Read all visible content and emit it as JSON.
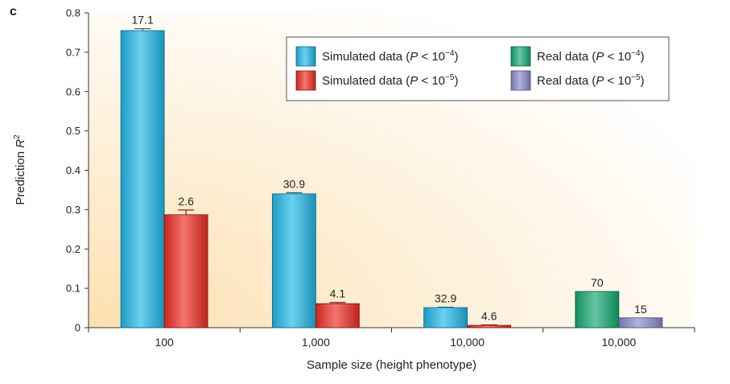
{
  "panel_label": "c",
  "chart_data": {
    "type": "bar",
    "xlabel": "Sample size (height phenotype)",
    "ylabel_main": "Prediction ",
    "ylabel_italic": "R",
    "ylabel_sup": "2",
    "ylim": [
      0,
      0.8
    ],
    "yticks": [
      "0",
      "0.1",
      "0.2",
      "0.3",
      "0.4",
      "0.5",
      "0.6",
      "0.7",
      "0.8"
    ],
    "grid": false,
    "legend_position": "top-right",
    "categories": [
      "100",
      "1,000",
      "10,000",
      "10,000"
    ],
    "legend": [
      {
        "pre": "Simulated data (",
        "p": "P",
        "mid": " < 10",
        "sup": "−4",
        "post": ")",
        "color": "#1fb6e6"
      },
      {
        "pre": "Real data (",
        "p": "P",
        "mid": " < 10",
        "sup": "−4",
        "post": ")",
        "color": "#13a871"
      },
      {
        "pre": "Simulated data (",
        "p": "P",
        "mid": " < 10",
        "sup": "−5",
        "post": ")",
        "color": "#ee2b22"
      },
      {
        "pre": "Real data (",
        "p": "P",
        "mid": " < 10",
        "sup": "−5",
        "post": ")",
        "color": "#8888cc"
      }
    ],
    "bars": [
      {
        "series": "Simulated data (P < 10−4)",
        "category_index": 0,
        "slot": 0,
        "value": 0.755,
        "error": 0.005,
        "label": "17.1",
        "color": "#1fb6e6"
      },
      {
        "series": "Simulated data (P < 10−5)",
        "category_index": 0,
        "slot": 1,
        "value": 0.287,
        "error": 0.012,
        "label": "2.6",
        "color": "#ee2b22"
      },
      {
        "series": "Simulated data (P < 10−4)",
        "category_index": 1,
        "slot": 0,
        "value": 0.34,
        "error": 0.003,
        "label": "30.9",
        "color": "#1fb6e6"
      },
      {
        "series": "Simulated data (P < 10−5)",
        "category_index": 1,
        "slot": 1,
        "value": 0.061,
        "error": 0.003,
        "label": "4.1",
        "color": "#ee2b22"
      },
      {
        "series": "Simulated data (P < 10−4)",
        "category_index": 2,
        "slot": 0,
        "value": 0.051,
        "error": 0.001,
        "label": "32.9",
        "color": "#1fb6e6"
      },
      {
        "series": "Simulated data (P < 10−5)",
        "category_index": 2,
        "slot": 1,
        "value": 0.006,
        "error": 0.001,
        "label": "4.6",
        "color": "#ee2b22"
      },
      {
        "series": "Real data (P < 10−4)",
        "category_index": 3,
        "slot": 0,
        "value": 0.092,
        "error": 0,
        "label": "70",
        "color": "#13a871"
      },
      {
        "series": "Real data (P < 10−5)",
        "category_index": 3,
        "slot": 1,
        "value": 0.025,
        "error": 0,
        "label": "15",
        "color": "#8888cc"
      }
    ]
  }
}
